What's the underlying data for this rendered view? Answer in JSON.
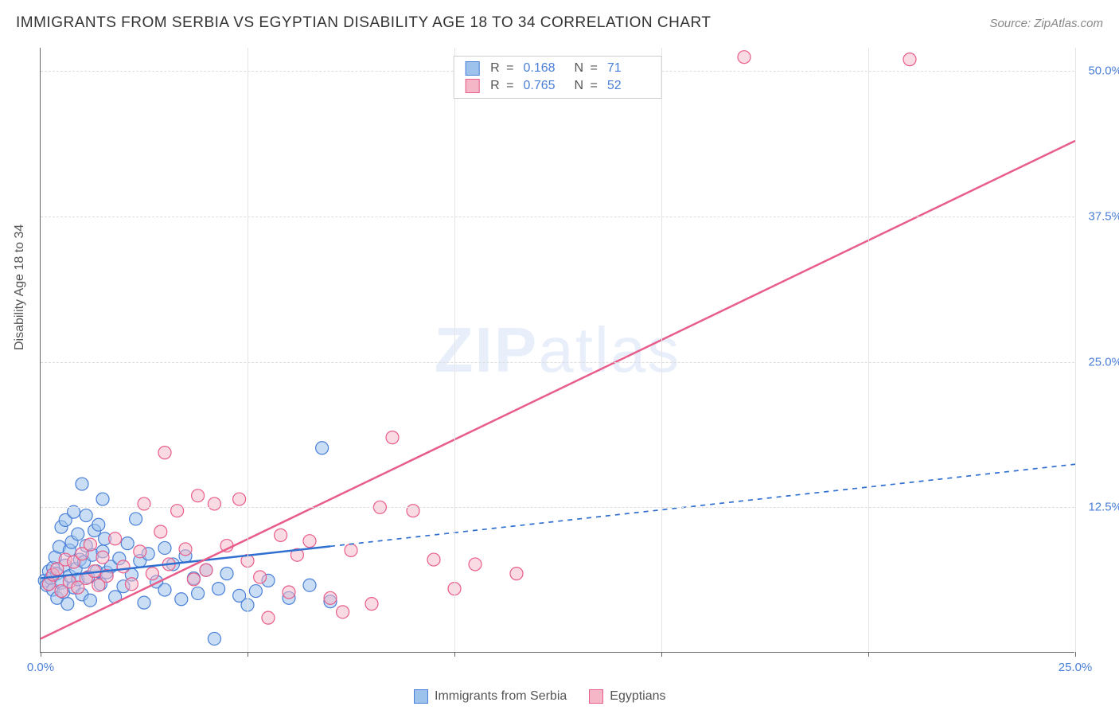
{
  "title": "IMMIGRANTS FROM SERBIA VS EGYPTIAN DISABILITY AGE 18 TO 34 CORRELATION CHART",
  "source": "Source: ZipAtlas.com",
  "y_axis_title": "Disability Age 18 to 34",
  "watermark": {
    "bold": "ZIP",
    "rest": "atlas"
  },
  "chart": {
    "type": "scatter",
    "xlim": [
      0,
      25
    ],
    "ylim": [
      0,
      52
    ],
    "x_ticks": [
      0,
      5,
      10,
      15,
      20,
      25
    ],
    "x_tick_labels": [
      "0.0%",
      "",
      "",
      "",
      "",
      "25.0%"
    ],
    "y_ticks": [
      12.5,
      25.0,
      37.5,
      50.0
    ],
    "y_tick_labels": [
      "12.5%",
      "25.0%",
      "37.5%",
      "50.0%"
    ],
    "grid_color": "#dddddd",
    "tick_font_color": "#4a7fd8",
    "background_color": "#ffffff",
    "series": [
      {
        "name": "Immigrants from Serbia",
        "key": "serbia",
        "marker_fill": "#9dc3ec",
        "marker_fill_opacity": 0.55,
        "marker_stroke": "#4a7fd8",
        "marker_radius": 8,
        "line_color": "#2f6fd0",
        "line_width": 2.5,
        "line_solid_to_x": 7.0,
        "line_dash": "6,6",
        "regression": {
          "x1": 0,
          "y1": 6.4,
          "x2": 25,
          "y2": 16.2
        },
        "R": "0.168",
        "N": "71",
        "points": [
          [
            0.1,
            6.2
          ],
          [
            0.15,
            5.8
          ],
          [
            0.2,
            7.0
          ],
          [
            0.25,
            6.4
          ],
          [
            0.3,
            7.3
          ],
          [
            0.3,
            5.4
          ],
          [
            0.35,
            8.2
          ],
          [
            0.4,
            6.8
          ],
          [
            0.4,
            4.7
          ],
          [
            0.45,
            9.1
          ],
          [
            0.5,
            10.8
          ],
          [
            0.5,
            6.0
          ],
          [
            0.55,
            5.2
          ],
          [
            0.6,
            7.5
          ],
          [
            0.6,
            11.4
          ],
          [
            0.65,
            4.2
          ],
          [
            0.7,
            8.8
          ],
          [
            0.7,
            6.6
          ],
          [
            0.75,
            9.5
          ],
          [
            0.8,
            5.6
          ],
          [
            0.8,
            12.1
          ],
          [
            0.85,
            7.2
          ],
          [
            0.9,
            6.3
          ],
          [
            0.9,
            10.2
          ],
          [
            0.95,
            8.0
          ],
          [
            1.0,
            14.5
          ],
          [
            1.0,
            5.0
          ],
          [
            1.05,
            7.8
          ],
          [
            1.1,
            9.2
          ],
          [
            1.1,
            11.8
          ],
          [
            1.15,
            6.5
          ],
          [
            1.2,
            4.5
          ],
          [
            1.25,
            8.4
          ],
          [
            1.3,
            10.5
          ],
          [
            1.35,
            7.0
          ],
          [
            1.4,
            11.0
          ],
          [
            1.45,
            5.9
          ],
          [
            1.5,
            8.7
          ],
          [
            1.5,
            13.2
          ],
          [
            1.55,
            9.8
          ],
          [
            1.6,
            6.9
          ],
          [
            1.7,
            7.4
          ],
          [
            1.8,
            4.8
          ],
          [
            1.9,
            8.1
          ],
          [
            2.0,
            5.7
          ],
          [
            2.1,
            9.4
          ],
          [
            2.2,
            6.7
          ],
          [
            2.3,
            11.5
          ],
          [
            2.4,
            7.9
          ],
          [
            2.5,
            4.3
          ],
          [
            2.6,
            8.5
          ],
          [
            2.8,
            6.1
          ],
          [
            3.0,
            5.4
          ],
          [
            3.0,
            9.0
          ],
          [
            3.2,
            7.6
          ],
          [
            3.4,
            4.6
          ],
          [
            3.5,
            8.3
          ],
          [
            3.7,
            6.4
          ],
          [
            3.8,
            5.1
          ],
          [
            4.0,
            7.1
          ],
          [
            4.2,
            1.2
          ],
          [
            4.3,
            5.5
          ],
          [
            4.5,
            6.8
          ],
          [
            4.8,
            4.9
          ],
          [
            5.0,
            4.1
          ],
          [
            5.2,
            5.3
          ],
          [
            5.5,
            6.2
          ],
          [
            6.0,
            4.7
          ],
          [
            6.5,
            5.8
          ],
          [
            7.0,
            4.4
          ],
          [
            6.8,
            17.6
          ]
        ]
      },
      {
        "name": "Egyptians",
        "key": "egyptians",
        "marker_fill": "#f5b6c8",
        "marker_fill_opacity": 0.5,
        "marker_stroke": "#e85d8a",
        "marker_radius": 8,
        "line_color": "#e85d8a",
        "line_width": 2.5,
        "line_solid_to_x": 25,
        "line_dash": "",
        "regression": {
          "x1": 0,
          "y1": 1.2,
          "x2": 25,
          "y2": 44.0
        },
        "R": "0.765",
        "N": "52",
        "points": [
          [
            0.2,
            5.9
          ],
          [
            0.3,
            6.7
          ],
          [
            0.4,
            7.2
          ],
          [
            0.5,
            5.3
          ],
          [
            0.6,
            8.0
          ],
          [
            0.7,
            6.1
          ],
          [
            0.8,
            7.8
          ],
          [
            0.9,
            5.6
          ],
          [
            1.0,
            8.5
          ],
          [
            1.1,
            6.4
          ],
          [
            1.2,
            9.3
          ],
          [
            1.3,
            7.0
          ],
          [
            1.4,
            5.8
          ],
          [
            1.5,
            8.2
          ],
          [
            1.6,
            6.6
          ],
          [
            1.8,
            9.8
          ],
          [
            2.0,
            7.4
          ],
          [
            2.2,
            5.9
          ],
          [
            2.4,
            8.7
          ],
          [
            2.5,
            12.8
          ],
          [
            2.7,
            6.8
          ],
          [
            2.9,
            10.4
          ],
          [
            3.0,
            17.2
          ],
          [
            3.1,
            7.6
          ],
          [
            3.3,
            12.2
          ],
          [
            3.5,
            8.9
          ],
          [
            3.7,
            6.3
          ],
          [
            3.8,
            13.5
          ],
          [
            4.0,
            7.1
          ],
          [
            4.2,
            12.8
          ],
          [
            4.5,
            9.2
          ],
          [
            4.8,
            13.2
          ],
          [
            5.0,
            7.9
          ],
          [
            5.3,
            6.5
          ],
          [
            5.5,
            3.0
          ],
          [
            5.8,
            10.1
          ],
          [
            6.0,
            5.2
          ],
          [
            6.2,
            8.4
          ],
          [
            6.5,
            9.6
          ],
          [
            7.0,
            4.7
          ],
          [
            7.3,
            3.5
          ],
          [
            7.5,
            8.8
          ],
          [
            8.0,
            4.2
          ],
          [
            8.2,
            12.5
          ],
          [
            8.5,
            18.5
          ],
          [
            9.0,
            12.2
          ],
          [
            9.5,
            8.0
          ],
          [
            10.0,
            5.5
          ],
          [
            10.5,
            7.6
          ],
          [
            11.5,
            6.8
          ],
          [
            17.0,
            51.2
          ],
          [
            21.0,
            51.0
          ]
        ]
      }
    ]
  },
  "bottom_legend": [
    {
      "label": "Immigrants from Serbia",
      "fill": "#9dc3ec",
      "stroke": "#4a7fd8"
    },
    {
      "label": "Egyptians",
      "fill": "#f5b6c8",
      "stroke": "#e85d8a"
    }
  ]
}
